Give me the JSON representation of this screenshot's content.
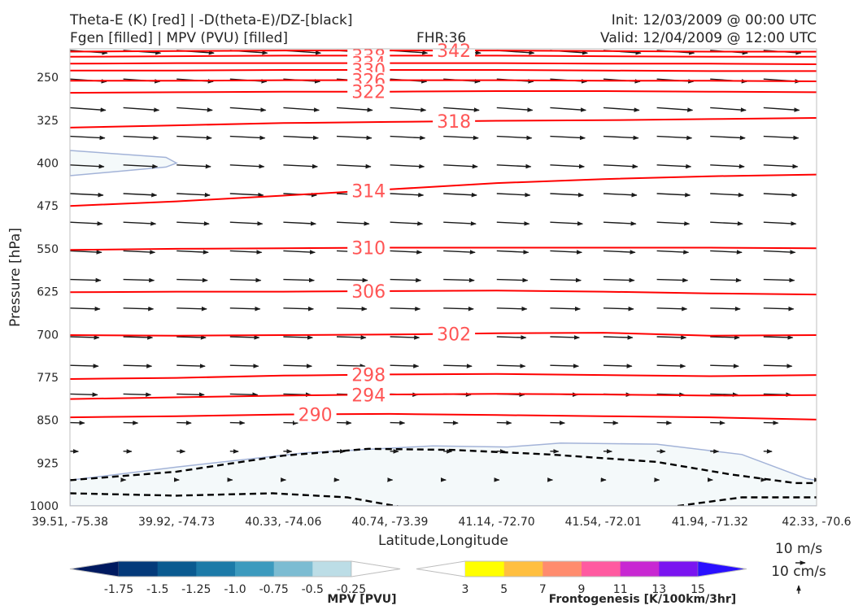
{
  "header": {
    "title_line1": "Theta-E (K) [red] | -D(theta-E)/DZ-[black]",
    "title_line2": "Fgen [filled] | MPV (PVU) [filled]",
    "fhr": "FHR:36",
    "init": "Init: 12/03/2009 @ 00:00 UTC",
    "valid": "Valid: 12/04/2009 @ 12:00 UTC"
  },
  "chart_data": {
    "type": "contour",
    "xlabel": "Latitude,Longitude",
    "ylabel": "Pressure [hPa]",
    "x_ticks": [
      "39.51, -75.38",
      "39.92, -74.73",
      "40.33, -74.06",
      "40.74, -73.39",
      "41.14, -72.70",
      "41.54, -72.01",
      "41.94, -71.32",
      "42.33, -70.6"
    ],
    "y_ticks": [
      250,
      325,
      400,
      475,
      550,
      625,
      700,
      775,
      850,
      925,
      1000
    ],
    "ylim": [
      1000,
      200
    ],
    "y_scale": "linear, inverted (pressure increases downward)",
    "theta_e_contours": [
      {
        "level": 342,
        "y": [
          205,
          204,
          203,
          203,
          203,
          204,
          205,
          205,
          206
        ]
      },
      {
        "level": 338,
        "y": [
          214,
          213,
          212,
          212,
          212,
          213,
          214,
          214,
          215
        ]
      },
      {
        "level": 334,
        "y": [
          226,
          225,
          225,
          225,
          225,
          226,
          226,
          227,
          227
        ]
      },
      {
        "level": 330,
        "y": [
          238,
          238,
          237,
          237,
          237,
          238,
          239,
          239,
          240
        ]
      },
      {
        "level": 326,
        "y": [
          256,
          256,
          255,
          255,
          255,
          256,
          256,
          257,
          257
        ]
      },
      {
        "level": 322,
        "y": [
          277,
          276,
          275,
          275,
          274,
          274,
          275,
          276,
          277
        ]
      },
      {
        "level": 318,
        "y": [
          338,
          334,
          330,
          328,
          326,
          325,
          323,
          321,
          319
        ]
      },
      {
        "level": 314,
        "y": [
          475,
          467,
          457,
          446,
          435,
          428,
          423,
          420,
          418
        ]
      },
      {
        "level": 310,
        "y": [
          552,
          550,
          549,
          548,
          548,
          548,
          548,
          549,
          549
        ]
      },
      {
        "level": 306,
        "y": [
          626,
          625,
          625,
          624,
          623,
          625,
          628,
          630,
          629
        ]
      },
      {
        "level": 302,
        "y": [
          701,
          702,
          701,
          700,
          698,
          697,
          702,
          701,
          700
        ]
      },
      {
        "level": 298,
        "y": [
          778,
          776,
          772,
          770,
          769,
          771,
          773,
          771,
          769
        ]
      },
      {
        "level": 294,
        "y": [
          813,
          810,
          807,
          805,
          804,
          805,
          807,
          806,
          805
        ]
      },
      {
        "level": 290,
        "y": [
          845,
          843,
          840,
          839,
          841,
          843,
          845,
          849,
          856
        ]
      }
    ],
    "theta_e_label_positions": [
      {
        "level": 342,
        "x": 3.6
      },
      {
        "level": 338,
        "x": 2.8
      },
      {
        "level": 334,
        "x": 2.8
      },
      {
        "level": 330,
        "x": 2.8
      },
      {
        "level": 326,
        "x": 2.8
      },
      {
        "level": 322,
        "x": 2.8
      },
      {
        "level": 318,
        "x": 3.6
      },
      {
        "level": 314,
        "x": 2.8
      },
      {
        "level": 310,
        "x": 2.8
      },
      {
        "level": 306,
        "x": 2.8
      },
      {
        "level": 302,
        "x": 3.6
      },
      {
        "level": 298,
        "x": 2.8
      },
      {
        "level": 294,
        "x": 2.8
      },
      {
        "level": 290,
        "x": 2.3
      }
    ],
    "neg_dthetae_dz_contours": [
      {
        "x": [
          0,
          1,
          2,
          2.8,
          3.6,
          4.5,
          5.5,
          6.2,
          6.8,
          7.4,
          8
        ],
        "y": [
          955,
          940,
          912,
          900,
          902,
          910,
          923,
          945,
          960,
          960,
          955
        ]
      },
      {
        "x": [
          0,
          1,
          1.9,
          2.6,
          3.2
        ],
        "y": [
          978,
          982,
          978,
          985,
          1005
        ]
      },
      {
        "x": [
          5.5,
          6.3,
          6.9,
          7.5,
          8
        ],
        "y": [
          1005,
          985,
          985,
          985,
          1005
        ]
      }
    ],
    "mpv_filled_regions": [
      {
        "color": "#f4f9fa",
        "x": [
          0,
          0.9,
          1.0,
          0.9,
          0,
          0
        ],
        "y": [
          378,
          390,
          400,
          407,
          422,
          378
        ]
      },
      {
        "color": "#f4f9fa",
        "x": [
          0,
          1,
          2.2,
          3.4,
          4.1,
          4.4,
          4.6,
          5.5,
          6.3,
          6.9,
          7.4,
          7.6,
          7.4,
          7.15,
          7.5,
          8,
          8,
          0
        ],
        "y": [
          955,
          932,
          907,
          895,
          897,
          893,
          890,
          892,
          910,
          952,
          970,
          960,
          983,
          985,
          985,
          975,
          1000,
          1000
        ]
      }
    ],
    "wind_field_note": "Black arrows: horizontal wind in cross-section plane; longer westerly aloft, shorter near surface",
    "quiver_key": {
      "horizontal": "10 m/s",
      "vertical": "10 cm/s"
    },
    "colorbars": [
      {
        "title": "MPV [PVU]",
        "ticks": [
          "-1.75",
          "-1.5",
          "-1.25",
          "-1.0",
          "-0.75",
          "-0.5",
          "-0.25"
        ],
        "colors": [
          "#001a60",
          "#043a7a",
          "#0a5a90",
          "#1c7aa8",
          "#3c9abe",
          "#7cbcd2",
          "#bcdde6",
          "#ffffff"
        ]
      },
      {
        "title": "Frontogenesis [K/100km/3hr]",
        "ticks": [
          "3",
          "5",
          "7",
          "9",
          "11",
          "13",
          "15"
        ],
        "colors": [
          "#ffffff",
          "#ffff00",
          "#ffbf40",
          "#ff8c6e",
          "#ff5aa0",
          "#c828d2",
          "#7a14f0",
          "#2a10ff"
        ]
      }
    ],
    "colors": {
      "theta_e": "#ff0000",
      "theta_e_label": "#ff5555",
      "wind": "#1a1a1a",
      "mpv_outline": "#a3b3d8"
    }
  }
}
